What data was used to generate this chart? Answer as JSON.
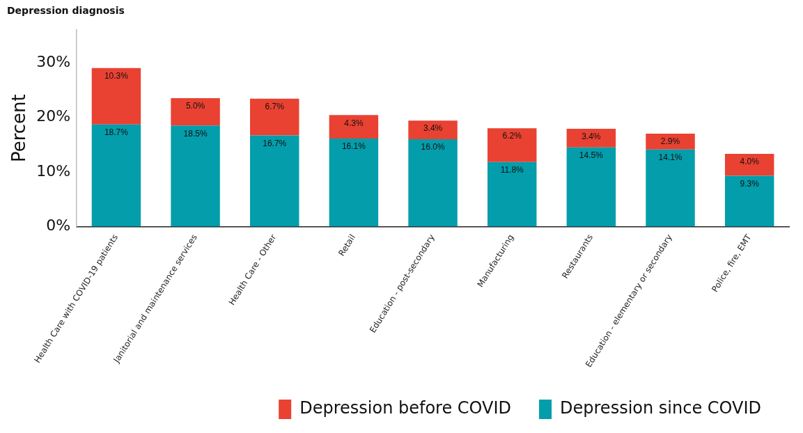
{
  "chart_data": {
    "type": "bar",
    "title": "Depression diagnosis",
    "ylabel": "Percent",
    "stacked": true,
    "legend": "bottom",
    "grid": false,
    "categories": [
      "Health Care with COVID-19 patients",
      "Janitorial and maintenance services",
      "Health Care - Other",
      "Retail",
      "Education - post-secondary",
      "Manufacturing",
      "Restaurants",
      "Education - elementary or secondary",
      "Police, fire, EMT"
    ],
    "series": [
      {
        "name": "Depression since COVID",
        "color": "#049dab",
        "values": [
          18.7,
          18.5,
          16.7,
          16.1,
          16.0,
          11.8,
          14.5,
          14.1,
          9.3
        ],
        "value_labels": [
          "18.7%",
          "18.5%",
          "16.7%",
          "16.1%",
          "16.0%",
          "11.8%",
          "14.5%",
          "14.1%",
          "9.3%"
        ]
      },
      {
        "name": "Depression before COVID",
        "color": "#e94232",
        "values": [
          10.3,
          5.0,
          6.7,
          4.3,
          3.4,
          6.2,
          3.4,
          2.9,
          4.0
        ],
        "value_labels": [
          "10.3%",
          "5.0%",
          "6.7%",
          "4.3%",
          "3.4%",
          "6.2%",
          "3.4%",
          "2.9%",
          "4.0%"
        ]
      }
    ],
    "ylim": [
      0,
      36
    ],
    "yticks": [
      {
        "value": 0,
        "label": "0%"
      },
      {
        "value": 10,
        "label": "10%"
      },
      {
        "value": 20,
        "label": "20%"
      },
      {
        "value": 30,
        "label": "30%"
      }
    ]
  }
}
